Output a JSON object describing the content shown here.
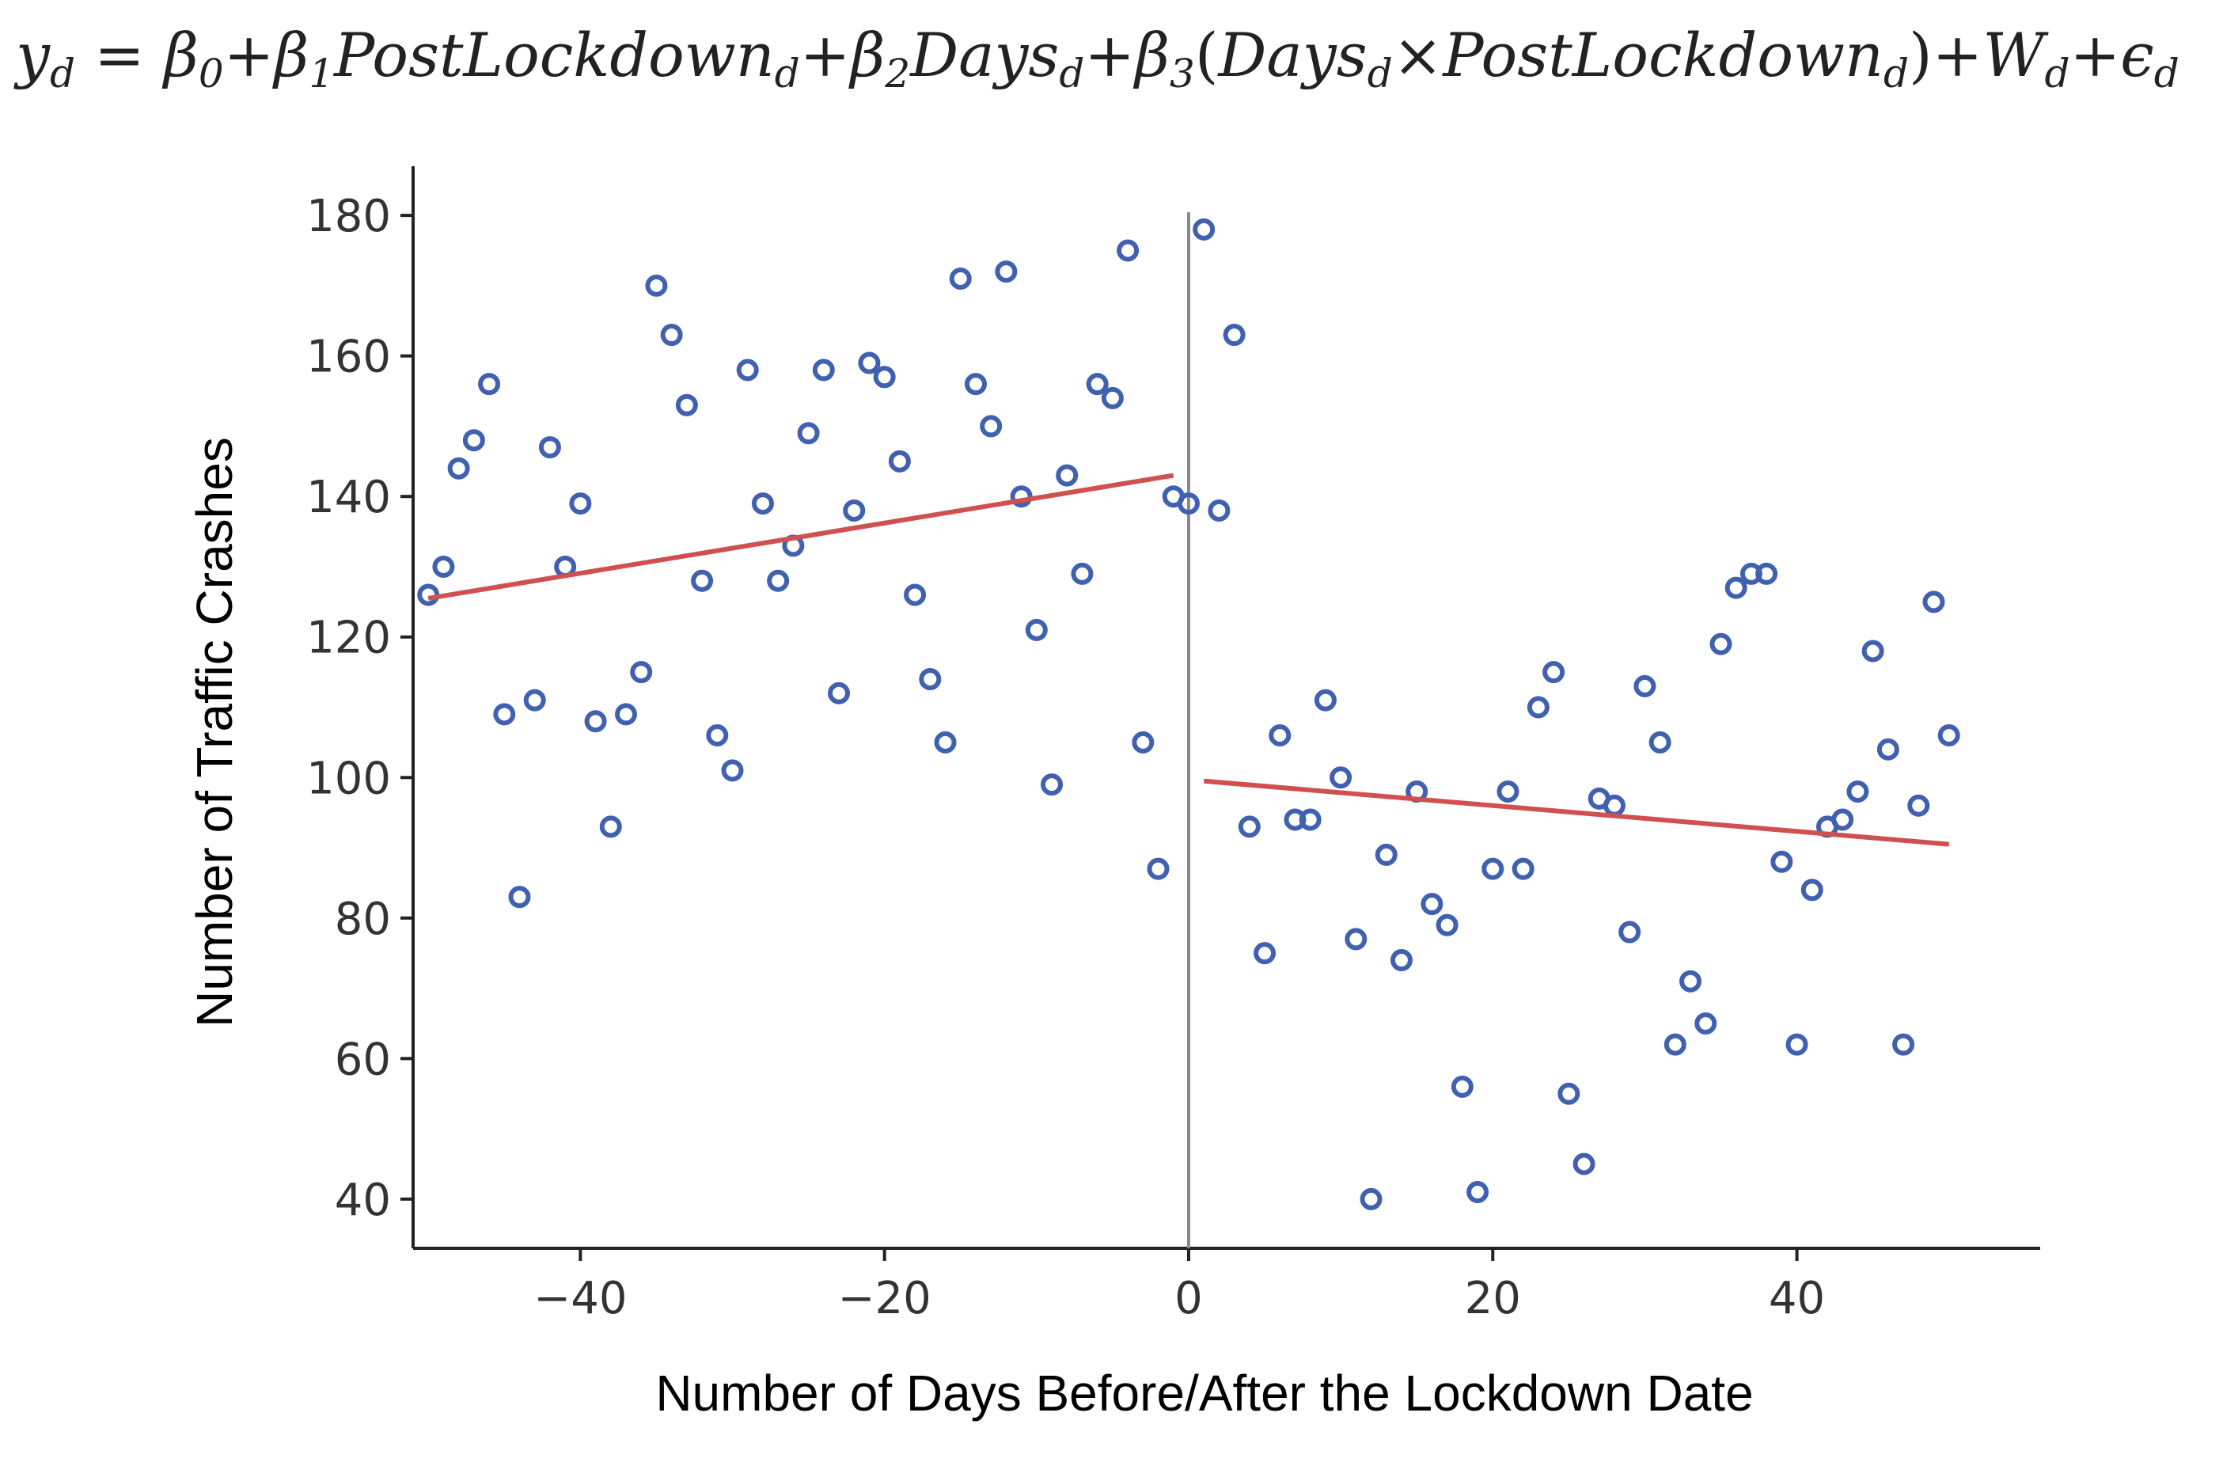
{
  "formula": {
    "parts": [
      {
        "t": "y",
        "sub": "d"
      },
      {
        "t": " = ",
        "up": true
      },
      {
        "t": "β",
        "sub": "0"
      },
      {
        "t": "+",
        "up": true
      },
      {
        "t": "β",
        "sub": "1"
      },
      {
        "t": "PostLockdown",
        "sub": "d"
      },
      {
        "t": "+",
        "up": true
      },
      {
        "t": "β",
        "sub": "2"
      },
      {
        "t": "Days",
        "sub": "d"
      },
      {
        "t": "+",
        "up": true
      },
      {
        "t": "β",
        "sub": "3"
      },
      {
        "t": "(",
        "up": true
      },
      {
        "t": "Days",
        "sub": "d"
      },
      {
        "t": "×",
        "up": true
      },
      {
        "t": "PostLockdown",
        "sub": "d"
      },
      {
        "t": ")",
        "up": true
      },
      {
        "t": "+",
        "up": true
      },
      {
        "t": "W",
        "sub": "d"
      },
      {
        "t": "+",
        "up": true
      },
      {
        "t": "ϵ",
        "sub": "d"
      }
    ]
  },
  "chart_data": {
    "type": "scatter",
    "xlabel": "Number of Days Before/After the Lockdown Date",
    "ylabel": "Number of Traffic Crashes",
    "xlim": [
      -51,
      56
    ],
    "ylim": [
      33,
      187
    ],
    "xticks": [
      -40,
      -20,
      0,
      20,
      40
    ],
    "xtick_labels": [
      "−40",
      "−20",
      "0",
      "20",
      "40"
    ],
    "yticks": [
      40,
      60,
      80,
      100,
      120,
      140,
      160,
      180
    ],
    "grid": false,
    "cutoff_x": 0,
    "colors": {
      "points": "#4060b0",
      "fit": "#d05050",
      "cutoff": "#888888",
      "axis": "#222222"
    },
    "series": [
      {
        "points": [
          [
            -50,
            126
          ],
          [
            -49,
            130
          ],
          [
            -48,
            144
          ],
          [
            -47,
            148
          ],
          [
            -46,
            156
          ],
          [
            -45,
            109
          ],
          [
            -44,
            83
          ],
          [
            -43,
            111
          ],
          [
            -42,
            147
          ],
          [
            -41,
            130
          ],
          [
            -40,
            139
          ],
          [
            -39,
            108
          ],
          [
            -38,
            93
          ],
          [
            -37,
            109
          ],
          [
            -36,
            115
          ],
          [
            -35,
            170
          ],
          [
            -34,
            163
          ],
          [
            -33,
            153
          ],
          [
            -32,
            128
          ],
          [
            -31,
            106
          ],
          [
            -30,
            101
          ],
          [
            -29,
            158
          ],
          [
            -28,
            139
          ],
          [
            -27,
            128
          ],
          [
            -26,
            133
          ],
          [
            -25,
            149
          ],
          [
            -24,
            158
          ],
          [
            -23,
            112
          ],
          [
            -22,
            138
          ],
          [
            -21,
            159
          ],
          [
            -20,
            157
          ],
          [
            -19,
            145
          ],
          [
            -18,
            126
          ],
          [
            -17,
            114
          ],
          [
            -16,
            105
          ],
          [
            -15,
            171
          ],
          [
            -14,
            156
          ],
          [
            -13,
            150
          ],
          [
            -12,
            172
          ],
          [
            -11,
            140
          ],
          [
            -10,
            121
          ],
          [
            -9,
            99
          ],
          [
            -8,
            143
          ],
          [
            -7,
            129
          ],
          [
            -6,
            156
          ],
          [
            -5,
            154
          ],
          [
            -4,
            175
          ],
          [
            -3,
            105
          ],
          [
            -2,
            87
          ],
          [
            -1,
            140
          ],
          [
            0,
            139
          ],
          [
            1,
            178
          ],
          [
            2,
            138
          ],
          [
            3,
            163
          ],
          [
            4,
            93
          ],
          [
            5,
            75
          ],
          [
            6,
            106
          ],
          [
            7,
            94
          ],
          [
            8,
            94
          ],
          [
            9,
            111
          ],
          [
            10,
            100
          ],
          [
            11,
            77
          ],
          [
            12,
            40
          ],
          [
            13,
            89
          ],
          [
            14,
            74
          ],
          [
            15,
            98
          ],
          [
            16,
            82
          ],
          [
            17,
            79
          ],
          [
            18,
            56
          ],
          [
            19,
            41
          ],
          [
            20,
            87
          ],
          [
            21,
            98
          ],
          [
            22,
            87
          ],
          [
            23,
            110
          ],
          [
            24,
            115
          ],
          [
            25,
            55
          ],
          [
            26,
            45
          ],
          [
            27,
            97
          ],
          [
            28,
            96
          ],
          [
            29,
            78
          ],
          [
            30,
            113
          ],
          [
            31,
            105
          ],
          [
            32,
            62
          ],
          [
            33,
            71
          ],
          [
            34,
            65
          ],
          [
            35,
            119
          ],
          [
            36,
            127
          ],
          [
            37,
            129
          ],
          [
            38,
            129
          ],
          [
            39,
            88
          ],
          [
            40,
            62
          ],
          [
            41,
            84
          ],
          [
            42,
            93
          ],
          [
            43,
            94
          ],
          [
            44,
            98
          ],
          [
            45,
            118
          ],
          [
            46,
            104
          ],
          [
            47,
            62
          ],
          [
            48,
            96
          ],
          [
            49,
            125
          ],
          [
            50,
            106
          ]
        ]
      }
    ],
    "fit_lines": [
      {
        "x": [
          -50,
          -1
        ],
        "y": [
          125.5,
          143.0
        ]
      },
      {
        "x": [
          1,
          50
        ],
        "y": [
          99.5,
          90.5
        ]
      }
    ]
  }
}
